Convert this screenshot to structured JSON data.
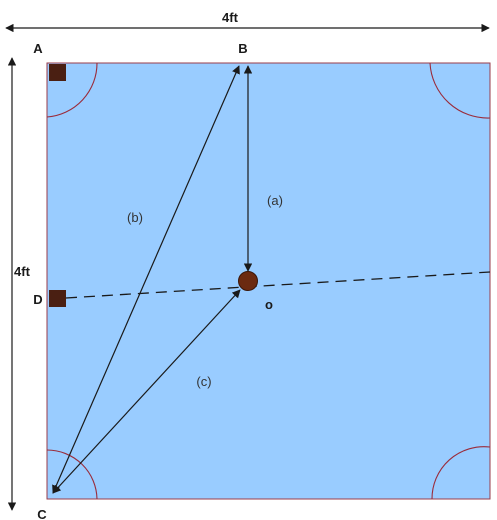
{
  "dimensions": {
    "width_label": "4ft",
    "height_label": "4ft"
  },
  "points": {
    "a": "A",
    "b": "B",
    "c": "C",
    "d": "D",
    "o": "o"
  },
  "segments": {
    "a": "(a)",
    "b": "(b)",
    "c": "(c)"
  },
  "colors": {
    "board_fill": "#99ccff",
    "board_border": "#9a3b4a",
    "corner_arc": "#9a2b3a",
    "marker_fill": "#4a1f12",
    "line_color": "#1a1a1a",
    "page_background": "#ffffff"
  }
}
